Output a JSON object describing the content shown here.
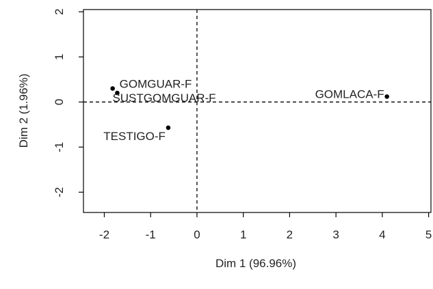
{
  "chart_data": {
    "type": "scatter",
    "xlabel": "Dim 1 (96.96%)",
    "ylabel": "Dim 2 (1.96%)",
    "xlim": [
      -2.45,
      5.05
    ],
    "ylim": [
      -2.45,
      2.05
    ],
    "x_ticks": [
      "-2",
      "-1",
      "0",
      "1",
      "2",
      "3",
      "4",
      "5"
    ],
    "y_ticks": [
      "2",
      "1",
      "0",
      "-1",
      "-2"
    ],
    "reference_lines": {
      "x": 0,
      "y": 0,
      "style": "dashed"
    },
    "grid": false,
    "points": [
      {
        "label": "GOMGUAR-F",
        "x": -1.82,
        "y": 0.3
      },
      {
        "label": "SUSTGOMGUAR-F",
        "x": -1.72,
        "y": 0.2
      },
      {
        "label": "GOMLACA-F",
        "x": 4.1,
        "y": 0.12
      },
      {
        "label": "TESTIGO-F",
        "x": -0.62,
        "y": -0.57
      }
    ],
    "colors": {
      "points": "#000000",
      "axes": "#000000",
      "text": "#222222"
    }
  }
}
